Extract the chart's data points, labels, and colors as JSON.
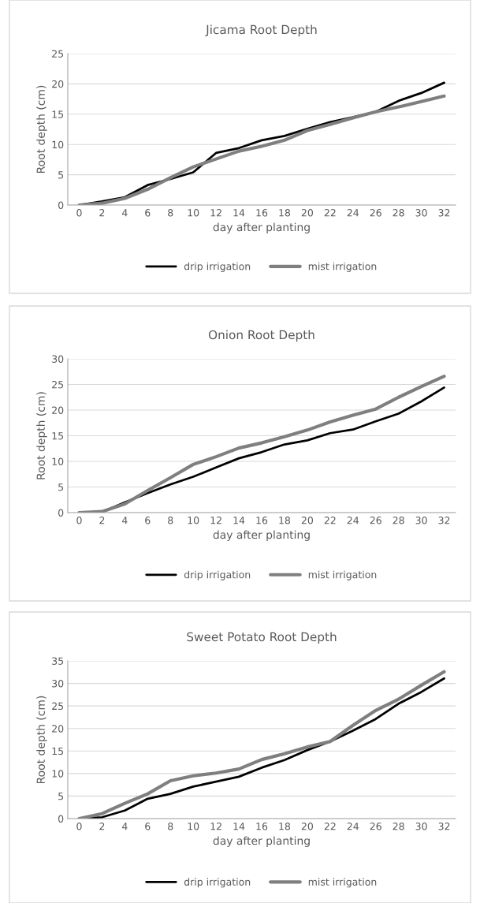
{
  "chart_data": [
    {
      "type": "line",
      "title": "Jicama Root Depth",
      "xlabel": "day after planting",
      "ylabel": "Root depth (cm)",
      "categories": [
        "0",
        "2",
        "4",
        "6",
        "8",
        "10",
        "12",
        "14",
        "16",
        "18",
        "20",
        "22",
        "24",
        "26",
        "28",
        "30",
        "32"
      ],
      "ylim": [
        0,
        25
      ],
      "yticks": [
        0,
        5,
        10,
        15,
        20,
        25
      ],
      "grid": "y",
      "legend": "bottom",
      "series": [
        {
          "name": "drip irrigation",
          "color": "#000000",
          "values": [
            0,
            0.6,
            1.3,
            3.3,
            4.3,
            5.4,
            8.6,
            9.4,
            10.7,
            11.4,
            12.6,
            13.7,
            14.5,
            15.4,
            17.2,
            18.5,
            20.2
          ]
        },
        {
          "name": "mist irrigation",
          "color": "#7f7f7f",
          "values": [
            0,
            0.3,
            1.1,
            2.6,
            4.5,
            6.3,
            7.6,
            8.9,
            9.7,
            10.7,
            12.3,
            13.3,
            14.4,
            15.4,
            16.2,
            17.1,
            18.0
          ]
        }
      ]
    },
    {
      "type": "line",
      "title": "Onion Root Depth",
      "xlabel": "day after planting",
      "ylabel": "Root depth (cm)",
      "categories": [
        "0",
        "2",
        "4",
        "6",
        "8",
        "10",
        "12",
        "14",
        "16",
        "18",
        "20",
        "22",
        "24",
        "26",
        "28",
        "30",
        "32"
      ],
      "ylim": [
        0,
        30
      ],
      "yticks": [
        0,
        5,
        10,
        15,
        20,
        25,
        30
      ],
      "grid": "y",
      "legend": "bottom",
      "series": [
        {
          "name": "drip irrigation",
          "color": "#000000",
          "values": [
            0,
            0.1,
            2.0,
            3.8,
            5.5,
            7.0,
            8.8,
            10.6,
            11.8,
            13.3,
            14.1,
            15.5,
            16.2,
            17.8,
            19.3,
            21.7,
            24.4
          ]
        },
        {
          "name": "mist irrigation",
          "color": "#7f7f7f",
          "values": [
            0,
            0.2,
            1.7,
            4.3,
            6.8,
            9.4,
            10.9,
            12.6,
            13.6,
            14.8,
            16.1,
            17.7,
            19.0,
            20.2,
            22.5,
            24.6,
            26.6
          ]
        }
      ]
    },
    {
      "type": "line",
      "title": "Sweet Potato Root Depth",
      "xlabel": "day after planting",
      "ylabel": "Root depth (cm)",
      "categories": [
        "0",
        "2",
        "4",
        "6",
        "8",
        "10",
        "12",
        "14",
        "16",
        "18",
        "20",
        "22",
        "24",
        "26",
        "28",
        "30",
        "32"
      ],
      "ylim": [
        0,
        35
      ],
      "yticks": [
        0,
        5,
        10,
        15,
        20,
        25,
        30,
        35
      ],
      "grid": "y",
      "legend": "bottom",
      "series": [
        {
          "name": "drip irrigation",
          "color": "#000000",
          "values": [
            0,
            0.3,
            1.8,
            4.4,
            5.5,
            7.1,
            8.2,
            9.3,
            11.3,
            13.0,
            15.2,
            17.1,
            19.5,
            22.1,
            25.5,
            28.1,
            31.1
          ]
        },
        {
          "name": "mist irrigation",
          "color": "#7f7f7f",
          "values": [
            0,
            1.1,
            3.4,
            5.5,
            8.4,
            9.5,
            10.1,
            11.0,
            13.1,
            14.4,
            15.9,
            17.1,
            20.7,
            24.0,
            26.5,
            29.6,
            32.6
          ]
        }
      ]
    }
  ]
}
